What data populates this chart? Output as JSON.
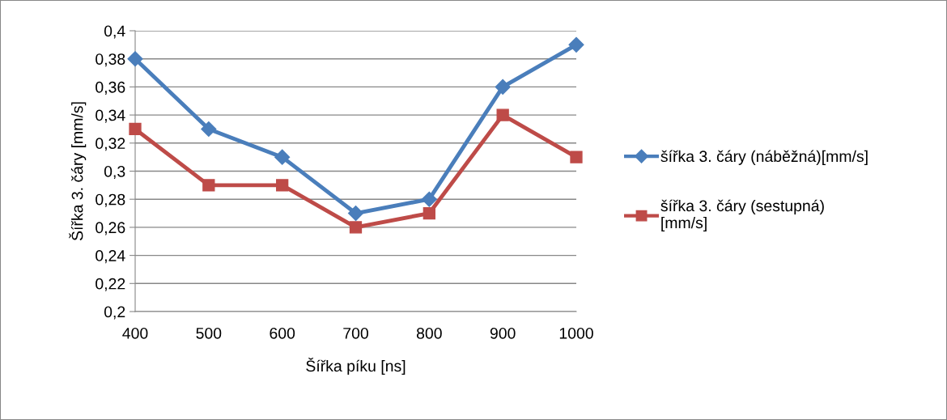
{
  "chart_data": {
    "type": "line",
    "xlabel": "Šířka píku [ns]",
    "ylabel": "Šířka 3. čáry [mm/s]",
    "categories": [
      "400",
      "500",
      "600",
      "700",
      "800",
      "900",
      "1000"
    ],
    "series": [
      {
        "name": "šířka 3. čáry (náběžná)[mm/s]",
        "color": "#4a7ebb",
        "marker": "diamond",
        "values": [
          0.38,
          0.33,
          0.31,
          0.27,
          0.28,
          0.36,
          0.39
        ]
      },
      {
        "name": "šířka 3. čáry (sestupná) [mm/s]",
        "color": "#be4b48",
        "marker": "square",
        "values": [
          0.33,
          0.29,
          0.29,
          0.26,
          0.27,
          0.34,
          0.31
        ]
      }
    ],
    "ylim": [
      0.2,
      0.4
    ],
    "yticks": [
      {
        "value": 0.2,
        "label": "0,2"
      },
      {
        "value": 0.22,
        "label": "0,22"
      },
      {
        "value": 0.24,
        "label": "0,24"
      },
      {
        "value": 0.26,
        "label": "0,26"
      },
      {
        "value": 0.28,
        "label": "0,28"
      },
      {
        "value": 0.3,
        "label": "0,3"
      },
      {
        "value": 0.32,
        "label": "0,32"
      },
      {
        "value": 0.34,
        "label": "0,34"
      },
      {
        "value": 0.36,
        "label": "0,36"
      },
      {
        "value": 0.38,
        "label": "0,38"
      },
      {
        "value": 0.4,
        "label": "0,4"
      }
    ],
    "grid": "y",
    "legend": "right",
    "line_style": "solid"
  }
}
